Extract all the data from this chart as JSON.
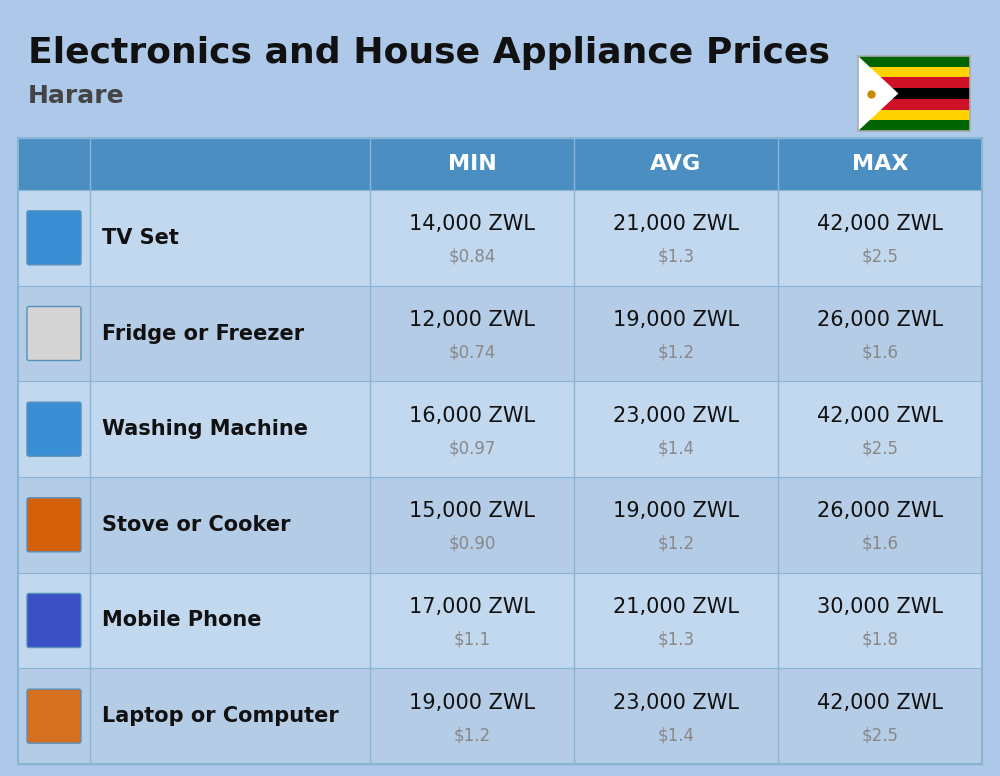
{
  "title": "Electronics and House Appliance Prices",
  "subtitle": "Harare",
  "bg_color": "#adc8e8",
  "header_bg": "#4a8ec2",
  "header_text_color": "#ffffff",
  "row_bg_even": "#c2d8ef",
  "row_bg_odd": "#b5cce6",
  "col_border_color": "#8ab4d4",
  "items": [
    {
      "name": "TV Set",
      "min_zwl": "14,000 ZWL",
      "min_usd": "$0.84",
      "avg_zwl": "21,000 ZWL",
      "avg_usd": "$1.3",
      "max_zwl": "42,000 ZWL",
      "max_usd": "$2.5"
    },
    {
      "name": "Fridge or Freezer",
      "min_zwl": "12,000 ZWL",
      "min_usd": "$0.74",
      "avg_zwl": "19,000 ZWL",
      "avg_usd": "$1.2",
      "max_zwl": "26,000 ZWL",
      "max_usd": "$1.6"
    },
    {
      "name": "Washing Machine",
      "min_zwl": "16,000 ZWL",
      "min_usd": "$0.97",
      "avg_zwl": "23,000 ZWL",
      "avg_usd": "$1.4",
      "max_zwl": "42,000 ZWL",
      "max_usd": "$2.5"
    },
    {
      "name": "Stove or Cooker",
      "min_zwl": "15,000 ZWL",
      "min_usd": "$0.90",
      "avg_zwl": "19,000 ZWL",
      "avg_usd": "$1.2",
      "max_zwl": "26,000 ZWL",
      "max_usd": "$1.6"
    },
    {
      "name": "Mobile Phone",
      "min_zwl": "17,000 ZWL",
      "min_usd": "$1.1",
      "avg_zwl": "21,000 ZWL",
      "avg_usd": "$1.3",
      "max_zwl": "30,000 ZWL",
      "max_usd": "$1.8"
    },
    {
      "name": "Laptop or Computer",
      "min_zwl": "19,000 ZWL",
      "min_usd": "$1.2",
      "avg_zwl": "23,000 ZWL",
      "avg_usd": "$1.4",
      "max_zwl": "42,000 ZWL",
      "max_usd": "$2.5"
    }
  ],
  "flag_colors": [
    "#006400",
    "#FFD200",
    "#CE1126",
    "#000000",
    "#CE1126",
    "#FFD200",
    "#006400"
  ],
  "title_fontsize": 26,
  "subtitle_fontsize": 18,
  "header_fontsize": 16,
  "item_name_fontsize": 15,
  "value_fontsize": 15,
  "usd_fontsize": 12,
  "icon_colors": [
    "#3a8fd4",
    "#d4d4d4",
    "#3a8fd4",
    "#d4600a",
    "#3a50c4",
    "#d47020"
  ]
}
